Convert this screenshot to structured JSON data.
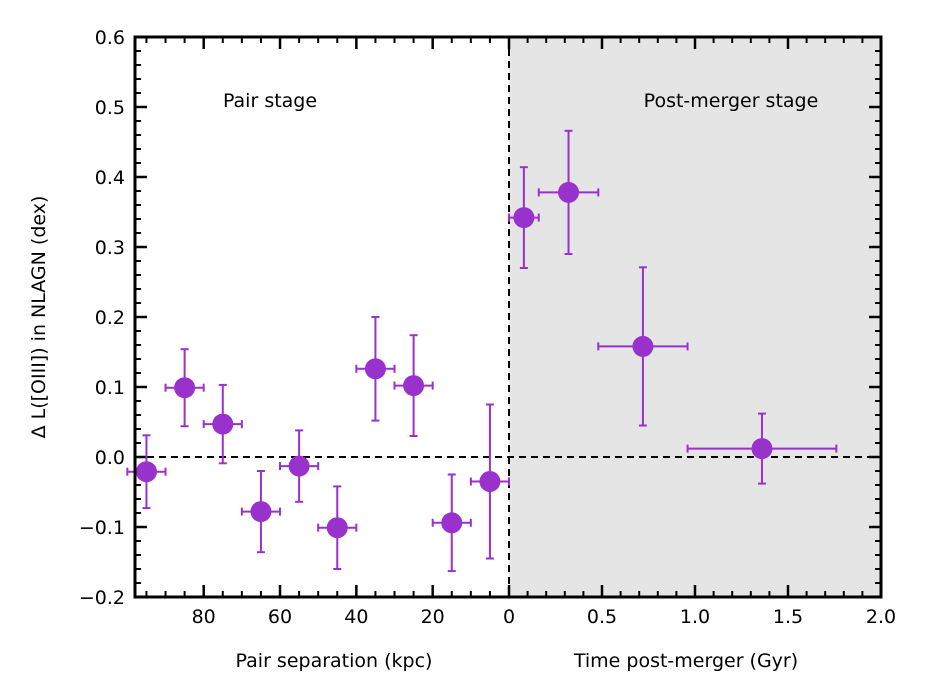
{
  "chart_data": {
    "type": "scatter",
    "ylabel": "Δ L([OIII]) in NLAGN (dex)",
    "ylim": [
      -0.2,
      0.6
    ],
    "yticks": [
      "−0.2",
      "−0.1",
      "0.0",
      "0.1",
      "0.2",
      "0.3",
      "0.4",
      "0.5",
      "0.6"
    ],
    "ytick_values": [
      -0.2,
      -0.1,
      0.0,
      0.1,
      0.2,
      0.3,
      0.4,
      0.5,
      0.6
    ],
    "reference_line_y": 0.0,
    "marker_color": "#9932CC",
    "panels": [
      {
        "name": "pair",
        "label": "Pair stage",
        "xlabel": "Pair separation (kpc)",
        "xlim": [
          98,
          0
        ],
        "xticks": [
          "80",
          "60",
          "40",
          "20",
          "0"
        ],
        "xtick_values": [
          80,
          60,
          40,
          20,
          0
        ],
        "background": "#ffffff",
        "points": [
          {
            "x": 95,
            "xerr": 5,
            "y": -0.021,
            "yerr": 0.052
          },
          {
            "x": 85,
            "xerr": 5,
            "y": 0.099,
            "yerr": 0.055
          },
          {
            "x": 75,
            "xerr": 5,
            "y": 0.047,
            "yerr": 0.056
          },
          {
            "x": 65,
            "xerr": 5,
            "y": -0.078,
            "yerr": 0.058
          },
          {
            "x": 55,
            "xerr": 5,
            "y": -0.013,
            "yerr": 0.051
          },
          {
            "x": 45,
            "xerr": 5,
            "y": -0.101,
            "yerr": 0.059
          },
          {
            "x": 35,
            "xerr": 5,
            "y": 0.126,
            "yerr": 0.074
          },
          {
            "x": 25,
            "xerr": 5,
            "y": 0.102,
            "yerr": 0.072
          },
          {
            "x": 15,
            "xerr": 5,
            "y": -0.094,
            "yerr": 0.069
          },
          {
            "x": 5,
            "xerr": 5,
            "y": -0.035,
            "yerr": 0.11
          }
        ]
      },
      {
        "name": "post-merger",
        "label": "Post-merger stage",
        "xlabel": "Time post-merger (Gyr)",
        "xlim": [
          0,
          2.0
        ],
        "xticks": [
          "0.5",
          "1.0",
          "1.5",
          "2.0"
        ],
        "xtick_values": [
          0.5,
          1.0,
          1.5,
          2.0
        ],
        "background": "#e5e5e5",
        "points": [
          {
            "x": 0.08,
            "xerr": 0.08,
            "y": 0.342,
            "yerr": 0.072
          },
          {
            "x": 0.32,
            "xerr": 0.16,
            "y": 0.378,
            "yerr": 0.088
          },
          {
            "x": 0.72,
            "xerr": 0.24,
            "y": 0.158,
            "yerr": 0.113
          },
          {
            "x": 1.36,
            "xerr": 0.4,
            "y": 0.012,
            "yerr": 0.05
          }
        ]
      }
    ]
  }
}
